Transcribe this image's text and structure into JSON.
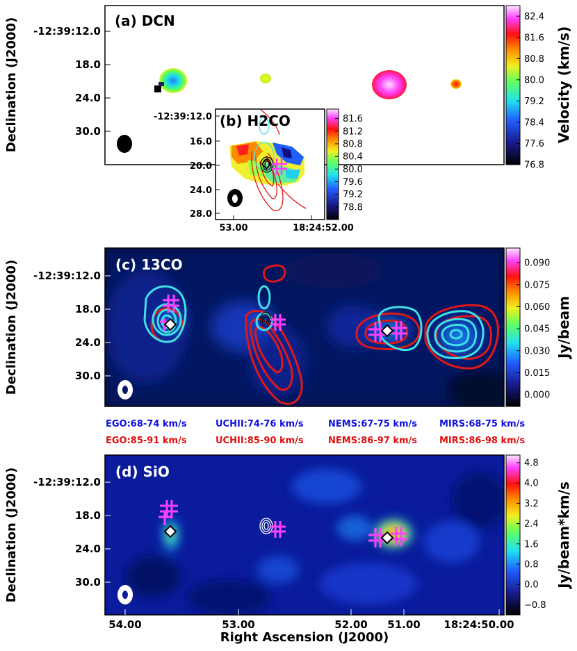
{
  "chart_data": [
    {
      "panel": "a",
      "type": "heatmap",
      "title": "(a) DCN",
      "ylabel": "Declination (J2000)",
      "yticks": [
        "-12:39:12.0",
        "18.0",
        "24.0",
        "30.0"
      ],
      "colorbar_label": "Velocity (km/s)",
      "colorbar_ticks": [
        "82.4",
        "81.6",
        "80.8",
        "80.0",
        "79.2",
        "78.4",
        "77.6",
        "76.8"
      ],
      "clim": [
        76.8,
        82.8
      ]
    },
    {
      "panel": "b",
      "type": "heatmap",
      "title": "(b) H2CO",
      "yticks": [
        "-12:39:12.0",
        "16.0",
        "20.0",
        "24.0",
        "28.0"
      ],
      "xticks": [
        "53.00",
        "18:24:52.00"
      ],
      "colorbar_ticks": [
        "81.6",
        "81.2",
        "80.8",
        "80.4",
        "80.0",
        "79.6",
        "79.2",
        "78.8"
      ],
      "clim": [
        78.4,
        81.9
      ]
    },
    {
      "panel": "c",
      "type": "heatmap",
      "title": "(c) 13CO",
      "ylabel": "Declination (J2000)",
      "yticks": [
        "-12:39:12.0",
        "18.0",
        "24.0",
        "30.0"
      ],
      "colorbar_label": "Jy/beam",
      "colorbar_ticks": [
        "0.090",
        "0.075",
        "0.060",
        "0.045",
        "0.030",
        "0.015",
        "0.000"
      ],
      "clim": [
        -0.008,
        0.1
      ]
    },
    {
      "panel": "d",
      "type": "heatmap",
      "title": "(d) SiO",
      "ylabel": "Declination (J2000)",
      "xlabel": "Right Ascension (J2000)",
      "yticks": [
        "-12:39:12.0",
        "18.0",
        "24.0",
        "30.0"
      ],
      "xticks": [
        "54.00",
        "53.00",
        "52.00",
        "51.00",
        "18:24:50.00"
      ],
      "colorbar_label": "Jy/beam*km/s",
      "colorbar_ticks": [
        "4.8",
        "4.0",
        "3.2",
        "2.4",
        "1.6",
        "0.8",
        "0.0",
        "−0.8"
      ],
      "clim": [
        -1.2,
        5.1
      ]
    }
  ],
  "velocity_ranges": {
    "blue": [
      "EGO:68-74 km/s",
      "UCHII:74-76 km/s",
      "NEMS:67-75 km/s",
      "MIRS:68-75 km/s"
    ],
    "red": [
      "EGO:85-91 km/s",
      "UCHII:85-90 km/s",
      "NEMS:86-97 km/s",
      "MIRS:86-98 km/s"
    ]
  },
  "colors": {
    "blue_label": "#1010e0",
    "red_label": "#e01010",
    "contour_cyan": "#40e0e8",
    "contour_red": "#e01818",
    "marker_magenta": "#ff40ff"
  }
}
